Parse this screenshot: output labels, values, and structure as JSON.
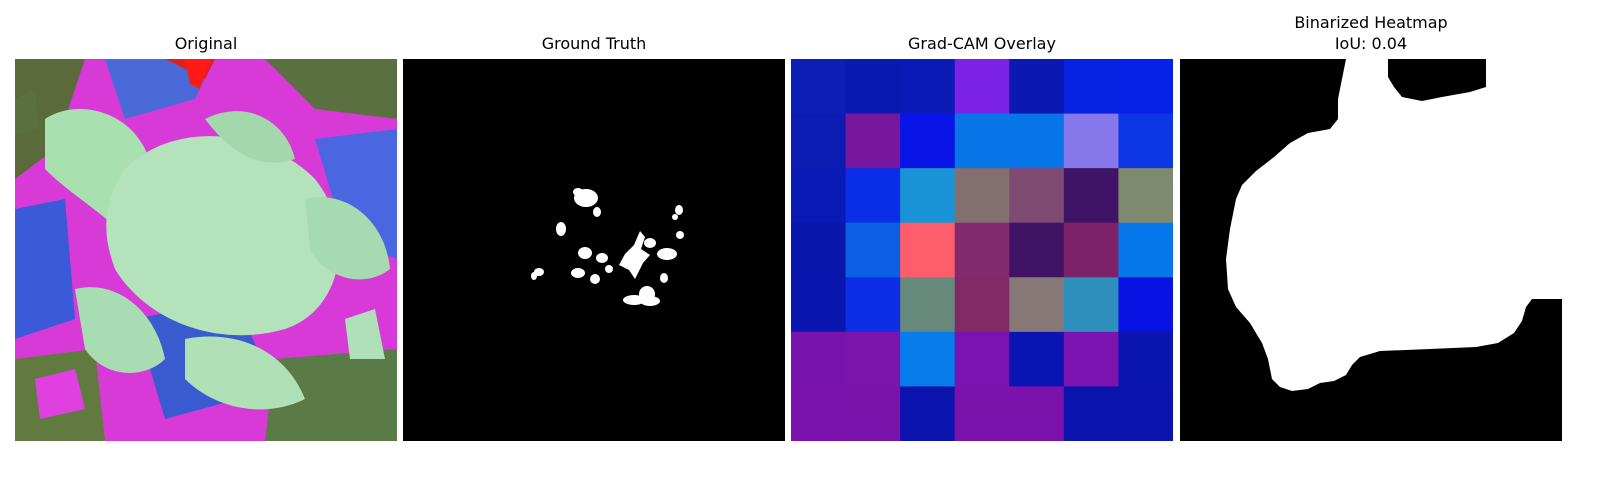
{
  "panels": [
    {
      "title": "Original"
    },
    {
      "title": "Ground Truth"
    },
    {
      "title": "Grad-CAM Overlay"
    },
    {
      "title": "Binarized Heatmap",
      "subtitle": "IoU: 0.04"
    }
  ],
  "gradcam": {
    "grid": [
      [
        "#0e1fb6",
        "#0a1ab0",
        "#0b1ab4",
        "#7b22e4",
        "#0b18b2",
        "#0622e2",
        "#0622e8"
      ],
      [
        "#0c1bb2",
        "#76179e",
        "#0813e6",
        "#0774e8",
        "#0774e8",
        "#8677ea",
        "#0c35e4"
      ],
      [
        "#0a1ab4",
        "#0a2ee8",
        "#1a93d6",
        "#836e70",
        "#7e4a72",
        "#3f1467",
        "#7e8a70"
      ],
      [
        "#0a17ad",
        "#0b60e4",
        "#fe5e6c",
        "#822a6e",
        "#401464",
        "#7c2268",
        "#0677ea"
      ],
      [
        "#0a16ad",
        "#0d2ee6",
        "#678a7c",
        "#812a66",
        "#857876",
        "#2e8fbd",
        "#0813e3"
      ],
      [
        "#7913ad",
        "#7b14aa",
        "#077cea",
        "#7c12b0",
        "#0a15b4",
        "#7c12b0",
        "#0b16ae"
      ],
      [
        "#7b12ad",
        "#7a12ac",
        "#0b15ae",
        "#7c12ac",
        "#7c12ac",
        "#0b15ae",
        "#0b15ae"
      ]
    ]
  }
}
